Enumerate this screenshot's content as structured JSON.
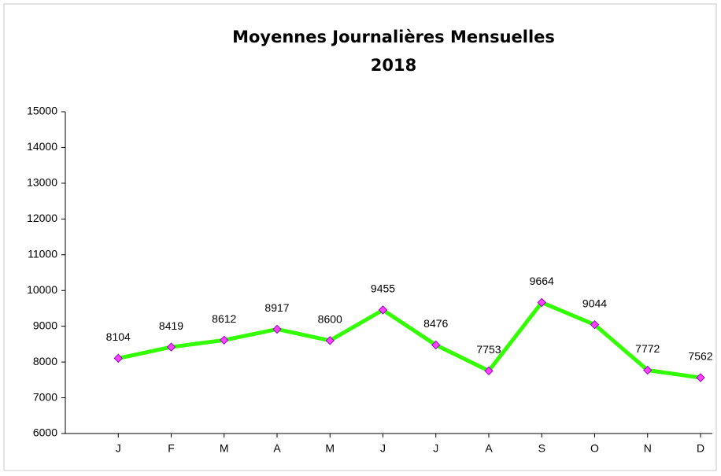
{
  "chart_data": {
    "type": "line",
    "title": "Moyennes Journalières Mensuelles",
    "subtitle": "2018",
    "categories": [
      "J",
      "F",
      "M",
      "A",
      "M",
      "J",
      "J",
      "A",
      "S",
      "O",
      "N",
      "D"
    ],
    "series": [
      {
        "color": "#33ff00",
        "marker_color": "#ff44ff",
        "values": [
          8104,
          8419,
          8612,
          8917,
          8600,
          9455,
          8476,
          7753,
          9664,
          9044,
          7772,
          7562
        ]
      }
    ],
    "ylim": [
      6000,
      15000
    ],
    "yticks": [
      6000,
      7000,
      8000,
      9000,
      10000,
      11000,
      12000,
      13000,
      14000,
      15000
    ],
    "grid": false
  }
}
